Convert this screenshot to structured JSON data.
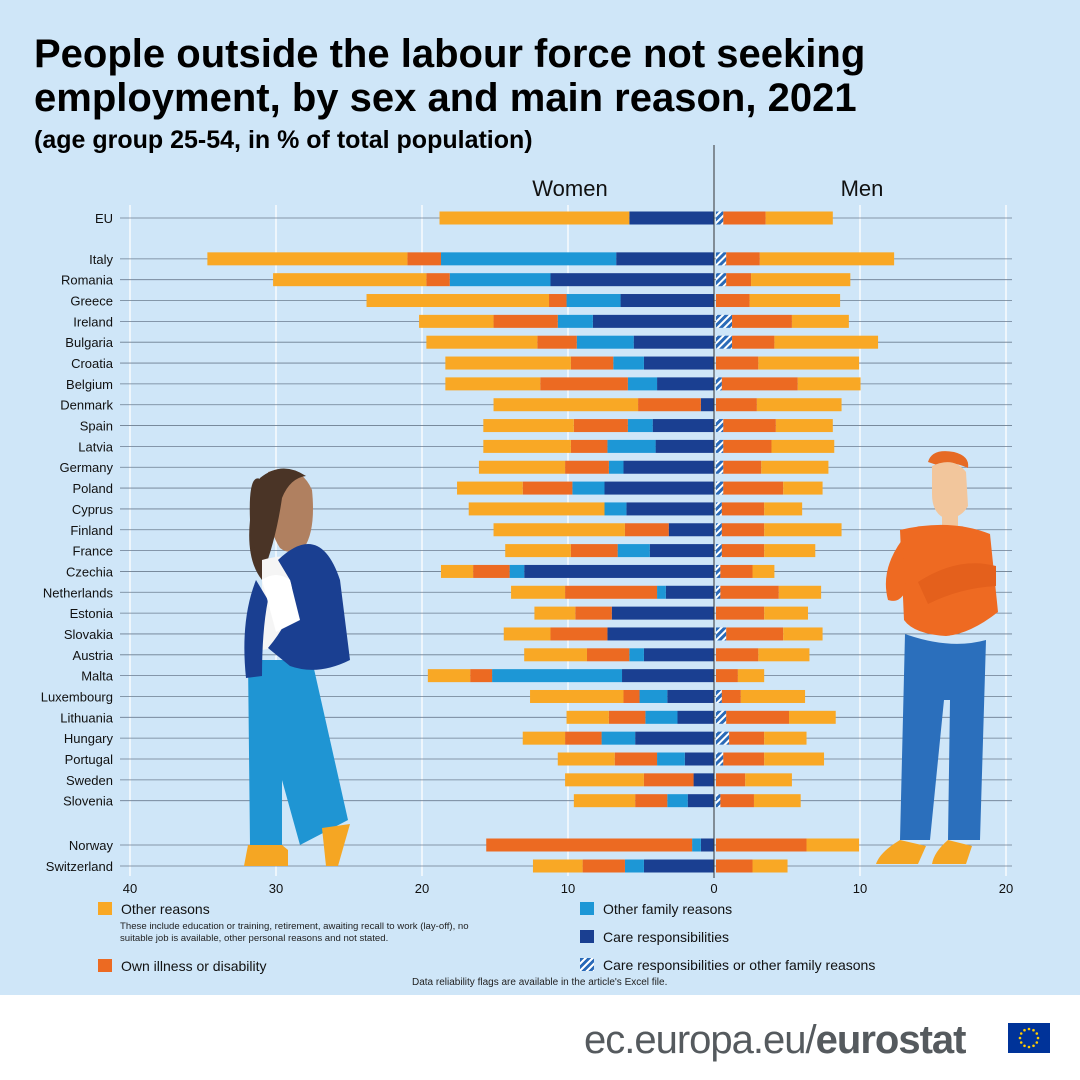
{
  "title": "People outside the labour force not seeking employment, by sex and main reason, 2021",
  "subtitle": "(age group 25-54, in % of total population)",
  "note": "Data reliability flags are available in the article's Excel file.",
  "source": {
    "prefix": "ec.europa.eu/",
    "brand": "eurostat"
  },
  "colors": {
    "background": "#cfe6f8",
    "other_reasons": "#f9a825",
    "own_illness": "#ec6a22",
    "other_family": "#1d97d6",
    "care": "#1a3f91",
    "care_or_family": "#2a6ab8"
  },
  "legend": {
    "other_reasons": "Other reasons",
    "other_reasons_note": "These include education or training, retirement, awaiting recall to work (lay-off), no suitable job is available, other personal reasons and not stated.",
    "own_illness": "Own illness or disability",
    "other_family": "Other family reasons",
    "care": "Care responsibilities",
    "care_or_family": "Care responsibilities or other family reasons"
  },
  "chart_data": {
    "type": "bar",
    "orientation": "horizontal",
    "layout": "diverging",
    "left_panel": "Women",
    "right_panel": "Men",
    "x_ticks_left": [
      "40",
      "30",
      "20",
      "10",
      "0"
    ],
    "x_ticks_right": [
      "10",
      "20"
    ],
    "xlim_women": [
      0,
      40
    ],
    "xlim_men": [
      0,
      20
    ],
    "categories": [
      "EU",
      "Italy",
      "Romania",
      "Greece",
      "Ireland",
      "Bulgaria",
      "Croatia",
      "Belgium",
      "Denmark",
      "Spain",
      "Latvia",
      "Germany",
      "Poland",
      "Cyprus",
      "Finland",
      "France",
      "Czechia",
      "Netherlands",
      "Estonia",
      "Slovakia",
      "Austria",
      "Malta",
      "Luxembourg",
      "Lithuania",
      "Hungary",
      "Portugal",
      "Sweden",
      "Slovenia",
      "Norway",
      "Switzerland"
    ],
    "women": {
      "care": [
        5.8,
        6.7,
        11.2,
        6.4,
        8.3,
        5.5,
        4.8,
        3.9,
        0.9,
        4.2,
        4.0,
        6.2,
        7.5,
        6.0,
        3.1,
        4.4,
        13.0,
        3.3,
        7.0,
        7.3,
        4.8,
        6.3,
        3.2,
        2.5,
        5.4,
        2.0,
        1.4,
        1.8,
        0.9,
        4.8
      ],
      "other_family": [
        0,
        12.0,
        6.9,
        3.7,
        2.4,
        3.9,
        2.1,
        2.0,
        0,
        1.7,
        3.3,
        1.0,
        2.2,
        1.5,
        0,
        2.2,
        1.0,
        0.6,
        0,
        0,
        1.0,
        8.9,
        1.9,
        2.2,
        2.3,
        1.9,
        0,
        1.4,
        0.6,
        1.3
      ],
      "own_illness": [
        0,
        2.3,
        1.6,
        1.2,
        4.4,
        2.7,
        2.9,
        6.0,
        4.3,
        3.7,
        2.5,
        3.0,
        3.4,
        0,
        3.0,
        3.2,
        2.5,
        6.3,
        2.5,
        3.9,
        2.9,
        1.5,
        1.1,
        2.5,
        2.5,
        2.9,
        3.4,
        2.2,
        14.1,
        2.9
      ],
      "other_reasons": [
        13.0,
        13.7,
        10.5,
        12.5,
        5.1,
        7.6,
        8.6,
        6.5,
        9.9,
        6.2,
        6.0,
        5.9,
        4.5,
        9.3,
        9.0,
        4.5,
        2.2,
        3.7,
        2.8,
        3.2,
        4.3,
        2.9,
        6.4,
        2.9,
        2.9,
        3.9,
        5.4,
        4.2,
        0,
        3.4
      ]
    },
    "men": {
      "care_or_family": [
        0.5,
        0.7,
        0.7,
        0,
        1.1,
        1.1,
        0,
        0.4,
        0,
        0.5,
        0.5,
        0.5,
        0.5,
        0.4,
        0.4,
        0.4,
        0.3,
        0.3,
        0,
        0.7,
        0,
        0,
        0.4,
        0.7,
        0.9,
        0.5,
        0,
        0.3,
        0,
        0
      ],
      "own_illness": [
        2.9,
        2.3,
        1.7,
        2.3,
        4.1,
        2.9,
        2.9,
        5.2,
        2.8,
        3.6,
        3.3,
        2.6,
        4.1,
        2.9,
        2.9,
        2.9,
        2.2,
        4.0,
        3.3,
        3.9,
        2.9,
        1.5,
        1.3,
        4.3,
        2.4,
        2.8,
        2.0,
        2.3,
        6.2,
        2.5
      ],
      "other_reasons": [
        4.6,
        9.2,
        6.8,
        6.2,
        3.9,
        7.1,
        6.9,
        4.3,
        5.8,
        3.9,
        4.3,
        4.6,
        2.7,
        2.6,
        5.3,
        3.5,
        1.5,
        2.9,
        3.0,
        2.7,
        3.5,
        1.8,
        4.4,
        3.2,
        2.9,
        4.1,
        3.2,
        3.2,
        3.6,
        2.4
      ]
    }
  }
}
